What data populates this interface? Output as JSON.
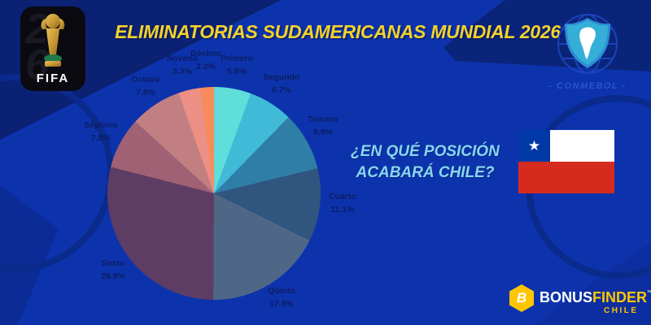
{
  "header": {
    "title": "ELIMINATORIAS SUDAMERICANAS MUNDIAL 2026"
  },
  "fifa_badge": {
    "digit_top": "2",
    "digit_bottom": "6",
    "wordmark": "FIFA"
  },
  "conmebol_badge": {
    "caption": "- CONMEBOL -"
  },
  "question": {
    "line1": "¿EN QUÉ POSICIÓN",
    "line2": "ACABARÁ CHILE?"
  },
  "chart_data": {
    "type": "pie",
    "categories": [
      "Primero",
      "Segundo",
      "Tercero",
      "Cuarto",
      "Quinto",
      "Sexto",
      "Séptimo",
      "Octavo",
      "Noveno",
      "Décimo"
    ],
    "values": [
      5.6,
      6.7,
      8.9,
      11.1,
      17.8,
      28.9,
      7.8,
      7.8,
      3.3,
      2.2
    ],
    "unit": "%",
    "colors": [
      "#5FDEDA",
      "#41BAD7",
      "#2F7EA8",
      "#30557E",
      "#4F6787",
      "#5E3D64",
      "#A06175",
      "#C17F82",
      "#EC8F85",
      "#F88B5C"
    ],
    "start_angle_deg": 0,
    "direction": "clockwise",
    "legend_position": "labels-around-slices"
  },
  "branding": {
    "monogram": "B",
    "prefix": "BONUS",
    "suffix": "FINDER",
    "trademark": "™",
    "region": "CHILE"
  },
  "colors": {
    "background": "#0D33AC",
    "corner_navy": "#0A2174",
    "accent_yellow": "#F2D229",
    "question_cyan": "#88D7EE",
    "label_navy": "#0B1C63",
    "flag_blue": "#0039A6",
    "flag_red": "#D52B1E",
    "bonus_yellow": "#FFC600"
  }
}
